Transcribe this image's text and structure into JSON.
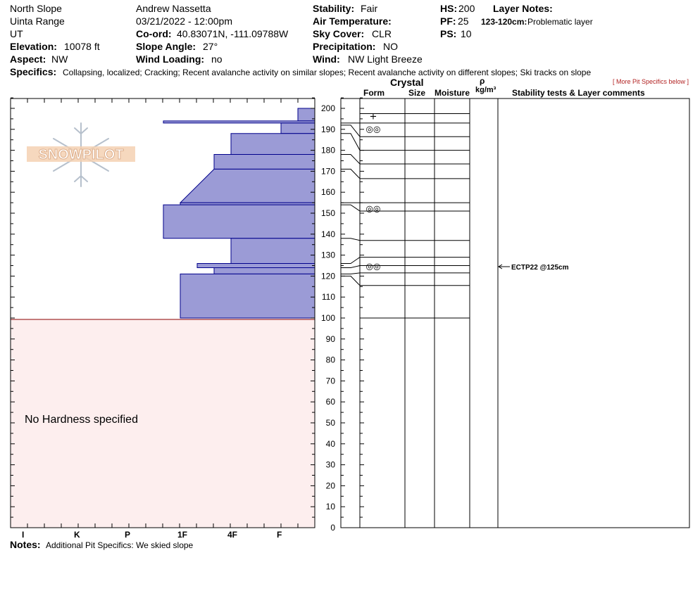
{
  "header": {
    "location": "North Slope",
    "range": "Uinta Range",
    "state": "UT",
    "elevation_label": "Elevation:",
    "elevation_value": "10078 ft",
    "aspect_label": "Aspect:",
    "aspect_value": "NW",
    "observer": "Andrew Nassetta",
    "datetime": "03/21/2022 - 12:00pm",
    "coord_label": "Co-ord:",
    "coord_value": "40.83071N, -111.09788W",
    "slope_label": "Slope Angle:",
    "slope_value": "27°",
    "wind_loading_label": "Wind Loading:",
    "wind_loading_value": "no",
    "stability_label": "Stability:",
    "stability_value": "Fair",
    "air_temp_label": "Air Temperature:",
    "air_temp_value": "",
    "sky_label": "Sky Cover:",
    "sky_value": "CLR",
    "precip_label": "Precipitation:",
    "precip_value": "NO",
    "wind_label": "Wind:",
    "wind_value": "NW Light Breeze",
    "hs_label": "HS:",
    "hs_value": "200",
    "pf_label": "PF:",
    "pf_value": "25",
    "ps_label": "PS:",
    "ps_value": "10",
    "layer_notes_label": "Layer Notes:",
    "layer_note_range": "123-120cm:",
    "layer_note_text": "Problematic layer",
    "specifics_label": "Specifics:",
    "specifics_text": "Collapsing, localized;  Cracking;  Recent avalanche activity on similar slopes;  Recent avalanche activity on different slopes;  Ski tracks on slope",
    "more_specifics": "[ More Pit Specifics below ]"
  },
  "columns": {
    "crystal": "Crystal",
    "form": "Form",
    "size": "Size",
    "moisture": "Moisture",
    "rho": "ρ",
    "density_unit": "kg/m³",
    "stability_tests": "Stability tests & Layer comments"
  },
  "logo_text": "SNOWPILOT",
  "no_hardness": "No Hardness specified",
  "notes_label": "Notes:",
  "notes_text": "Additional Pit Specifics: We skied slope",
  "stability_test": "ECTP22 @125cm",
  "hardness_scale": [
    "I",
    "K",
    "P",
    "1F",
    "4F",
    "F"
  ],
  "depth_ticks": [
    200,
    190,
    180,
    170,
    160,
    150,
    140,
    130,
    120,
    110,
    100,
    90,
    80,
    70,
    60,
    50,
    40,
    30,
    20,
    10,
    0
  ],
  "colors": {
    "layer_fill": "#9b9bd6",
    "layer_stroke": "#00008b",
    "no_hardness_fill": "#fdeeee",
    "no_hardness_stroke": "#8b0000"
  },
  "chart_data": {
    "type": "bar",
    "title": "",
    "ylabel": "",
    "ylim": [
      0,
      205
    ],
    "layers": [
      {
        "top": 200,
        "bottom": 194,
        "hardness": "F-"
      },
      {
        "top": 194,
        "bottom": 193,
        "hardness": "1F+"
      },
      {
        "top": 193,
        "bottom": 188,
        "hardness": "F"
      },
      {
        "top": 188,
        "bottom": 178,
        "hardness": "4F-"
      },
      {
        "top": 178,
        "bottom": 171,
        "hardness": "4F+"
      },
      {
        "top": 171,
        "bottom": 155,
        "hardness": "4F+ to 1F"
      },
      {
        "top": 155,
        "bottom": 154,
        "hardness": "1F"
      },
      {
        "top": 154,
        "bottom": 138,
        "hardness": "1F+"
      },
      {
        "top": 138,
        "bottom": 126,
        "hardness": "4F-"
      },
      {
        "top": 126,
        "bottom": 124,
        "hardness": "1F-"
      },
      {
        "top": 124,
        "bottom": 121,
        "hardness": "4F+"
      },
      {
        "top": 121,
        "bottom": 100,
        "hardness": "1F"
      }
    ],
    "grain_layers": [
      {
        "top": 200,
        "bottom": 193,
        "form": "+"
      },
      {
        "top": 193,
        "bottom": 188,
        "form": "◎◎"
      },
      {
        "top": 154,
        "bottom": 151,
        "form": "◎◎"
      },
      {
        "top": 126,
        "bottom": 124,
        "form": "◎◎"
      }
    ]
  }
}
